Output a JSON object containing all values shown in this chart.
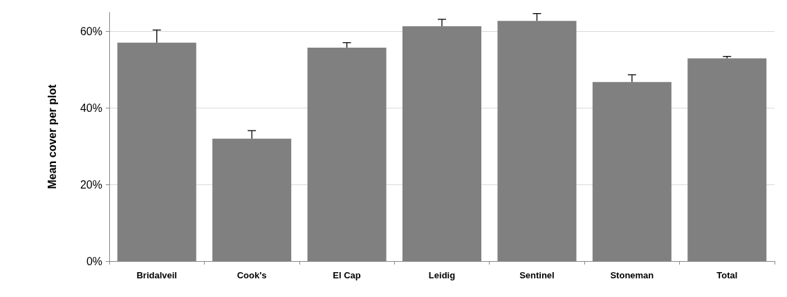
{
  "chart_data": {
    "type": "bar",
    "ylabel": "Mean cover per plot",
    "categories": [
      "Bridalveil",
      "Cook's",
      "El Cap",
      "Leidig",
      "Sentinel",
      "Stoneman",
      "Total"
    ],
    "values": [
      57.1,
      32.0,
      55.8,
      61.4,
      62.8,
      46.8,
      53.0
    ],
    "errors": [
      [
        57.1,
        60.4
      ],
      [
        32.0,
        34.1
      ],
      [
        55.8,
        57.1
      ],
      [
        61.4,
        63.2
      ],
      [
        62.8,
        64.7
      ],
      [
        46.8,
        48.7
      ],
      [
        53.0,
        53.5
      ]
    ],
    "color": "#808080",
    "ylim": [
      0,
      65
    ],
    "yticks": [
      {
        "value": 0,
        "label": "0%"
      },
      {
        "value": 20,
        "label": "20%"
      },
      {
        "value": 40,
        "label": "40%"
      },
      {
        "value": 60,
        "label": "60%"
      }
    ],
    "grid": "y"
  }
}
